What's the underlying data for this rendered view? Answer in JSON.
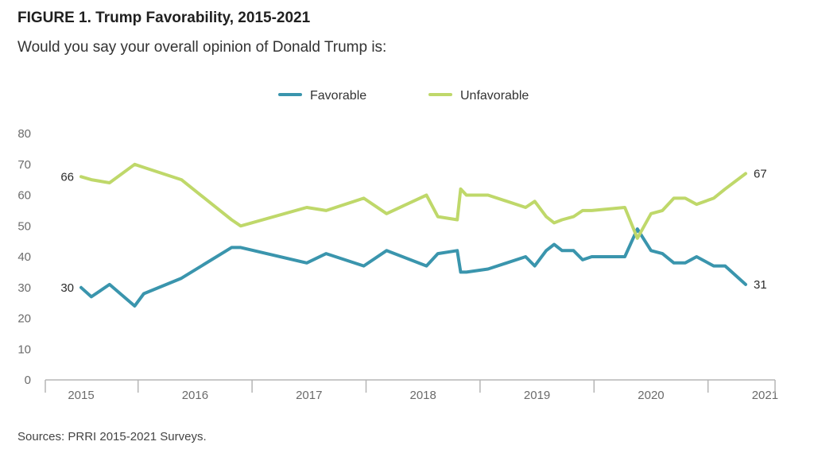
{
  "header": {
    "title": "FIGURE 1. Trump Favorability, 2015-2021",
    "subtitle": "Would you say your overall opinion of Donald Trump is:"
  },
  "footer": {
    "source": "Sources: PRRI 2015-2021 Surveys."
  },
  "chart_data": {
    "type": "line",
    "title": "FIGURE 1. Trump Favorability, 2015-2021",
    "subtitle": "Would you say your overall opinion of Donald Trump is:",
    "xlabel": "",
    "ylabel": "",
    "ylim": [
      0,
      80
    ],
    "yticks": [
      0,
      10,
      20,
      30,
      40,
      50,
      60,
      70,
      80
    ],
    "xlim": [
      2015.0,
      2021.25
    ],
    "xticks": [
      2015,
      2016,
      2017,
      2018,
      2019,
      2020,
      2021
    ],
    "xtick_labels": [
      "2015",
      "2016",
      "2017",
      "2018",
      "2019",
      "2020",
      "2021"
    ],
    "grid": false,
    "legend_position": "top-center",
    "series": [
      {
        "name": "Favorable",
        "color": "#3a95ad",
        "start_label": "30",
        "end_label": "31",
        "points": [
          [
            2015.0,
            30
          ],
          [
            2015.09,
            27
          ],
          [
            2015.25,
            31
          ],
          [
            2015.47,
            24
          ],
          [
            2015.55,
            28
          ],
          [
            2015.88,
            33
          ],
          [
            2016.32,
            43
          ],
          [
            2016.4,
            43
          ],
          [
            2016.98,
            38
          ],
          [
            2017.15,
            41
          ],
          [
            2017.48,
            37
          ],
          [
            2017.68,
            42
          ],
          [
            2018.03,
            37
          ],
          [
            2018.13,
            41
          ],
          [
            2018.3,
            42
          ],
          [
            2018.33,
            35
          ],
          [
            2018.38,
            35
          ],
          [
            2018.57,
            36
          ],
          [
            2018.9,
            40
          ],
          [
            2018.98,
            37
          ],
          [
            2019.08,
            42
          ],
          [
            2019.15,
            44
          ],
          [
            2019.22,
            42
          ],
          [
            2019.32,
            42
          ],
          [
            2019.4,
            39
          ],
          [
            2019.48,
            40
          ],
          [
            2019.77,
            40
          ],
          [
            2019.88,
            49
          ],
          [
            2020.0,
            42
          ],
          [
            2020.1,
            41
          ],
          [
            2020.2,
            38
          ],
          [
            2020.3,
            38
          ],
          [
            2020.4,
            40
          ],
          [
            2020.55,
            37
          ],
          [
            2020.65,
            37
          ],
          [
            2020.83,
            31
          ]
        ]
      },
      {
        "name": "Unfavorable",
        "color": "#bfd86a",
        "start_label": "66",
        "end_label": "67",
        "points": [
          [
            2015.0,
            66
          ],
          [
            2015.09,
            65
          ],
          [
            2015.25,
            64
          ],
          [
            2015.47,
            70
          ],
          [
            2015.55,
            69
          ],
          [
            2015.88,
            65
          ],
          [
            2016.32,
            52
          ],
          [
            2016.4,
            50
          ],
          [
            2016.98,
            56
          ],
          [
            2017.15,
            55
          ],
          [
            2017.48,
            59
          ],
          [
            2017.68,
            54
          ],
          [
            2018.03,
            60
          ],
          [
            2018.13,
            53
          ],
          [
            2018.3,
            52
          ],
          [
            2018.33,
            62
          ],
          [
            2018.38,
            60
          ],
          [
            2018.57,
            60
          ],
          [
            2018.9,
            56
          ],
          [
            2018.98,
            58
          ],
          [
            2019.08,
            53
          ],
          [
            2019.15,
            51
          ],
          [
            2019.22,
            52
          ],
          [
            2019.32,
            53
          ],
          [
            2019.4,
            55
          ],
          [
            2019.48,
            55
          ],
          [
            2019.77,
            56
          ],
          [
            2019.88,
            46
          ],
          [
            2020.0,
            54
          ],
          [
            2020.1,
            55
          ],
          [
            2020.2,
            59
          ],
          [
            2020.3,
            59
          ],
          [
            2020.4,
            57
          ],
          [
            2020.55,
            59
          ],
          [
            2020.65,
            62
          ],
          [
            2020.83,
            67
          ]
        ]
      }
    ]
  }
}
